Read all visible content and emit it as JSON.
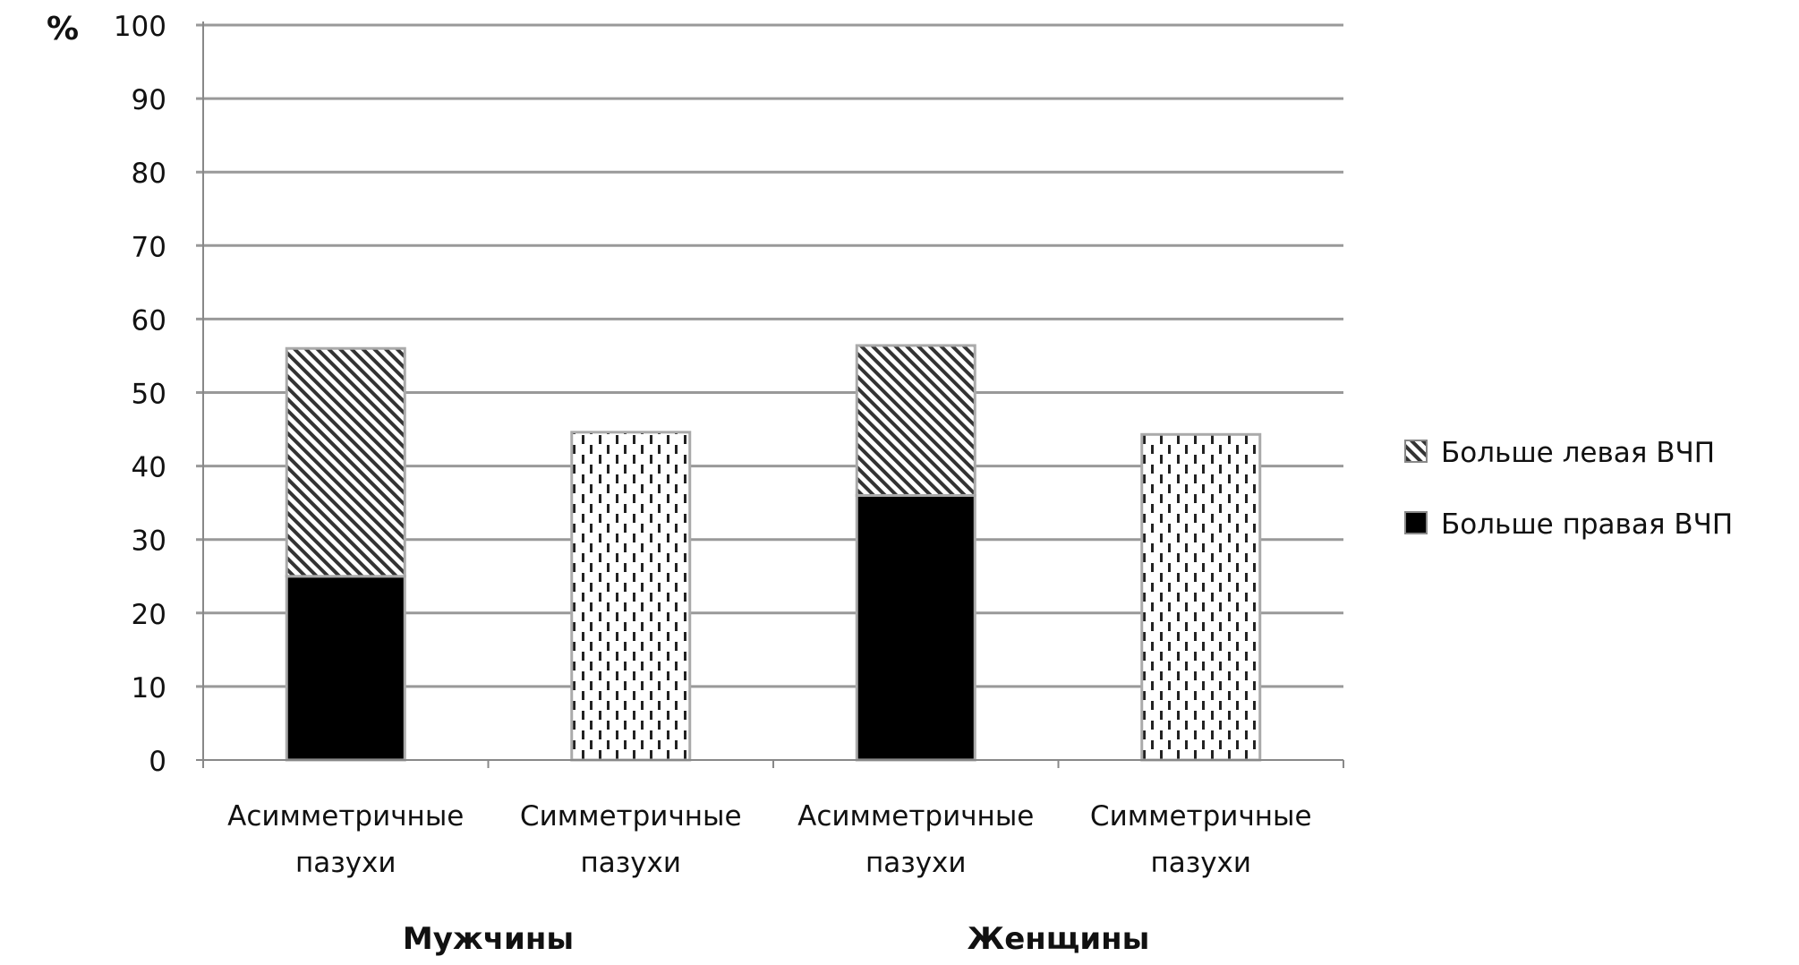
{
  "chart_data": {
    "type": "bar",
    "stacked": true,
    "ylabel": "%",
    "ylim": [
      0,
      100
    ],
    "yticks": [
      0,
      10,
      20,
      30,
      40,
      50,
      60,
      70,
      80,
      90,
      100
    ],
    "grid": true,
    "legend_position": "right",
    "categories": [
      [
        "Асимметричные",
        "пазухи"
      ],
      [
        "Симметричные",
        "пазухи"
      ],
      [
        "Асимметричные",
        "пазухи"
      ],
      [
        "Симметричные",
        "пазухи"
      ]
    ],
    "groups": [
      {
        "label": "Мужчины",
        "categories": [
          0,
          1
        ]
      },
      {
        "label": "Женщины",
        "categories": [
          2,
          3
        ]
      }
    ],
    "series": [
      {
        "name": "Больше правая ВЧП",
        "pattern": "solid",
        "color": "#000000",
        "values": [
          25,
          0,
          36,
          0
        ]
      },
      {
        "name": "Больше левая ВЧП",
        "pattern": "diagonal-hatch",
        "color": "#333333",
        "values": [
          31,
          0,
          20.4,
          0
        ]
      },
      {
        "name": "",
        "pattern": "dashed-dots",
        "color": "#222222",
        "values": [
          0,
          44.6,
          0,
          44.3
        ]
      }
    ],
    "legend": [
      "Больше левая ВЧП",
      "Больше правая ВЧП"
    ]
  }
}
